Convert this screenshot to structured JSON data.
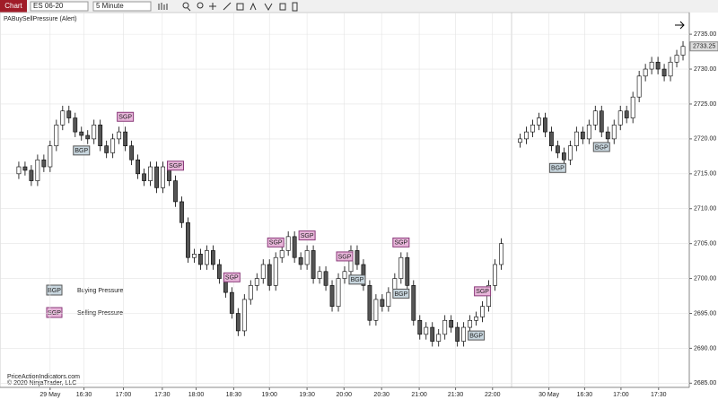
{
  "toolbar": {
    "tab": "Chart",
    "instrument": "ES 06-20",
    "interval": "5 Minute"
  },
  "indicator": "PABuySellPressure (Alert)",
  "footer": [
    "PriceActionIndicators.com",
    "© 2020 NinjaTrader, LLC"
  ],
  "legend": [
    {
      "tag": "BGP",
      "text": "Buying Pressure"
    },
    {
      "tag": "SGP",
      "text": "Selling Pressure"
    }
  ],
  "chart_data": {
    "type": "candlestick",
    "x": [
      0,
      1,
      2,
      3,
      4,
      5,
      6,
      7,
      8,
      9,
      10,
      11,
      12,
      13,
      14,
      15,
      16,
      17,
      18,
      19,
      20,
      21,
      22,
      23,
      24,
      25,
      26,
      27,
      28,
      29,
      30,
      31,
      32,
      33,
      34,
      35,
      36,
      37,
      38,
      39,
      40,
      41,
      42,
      43,
      44,
      45,
      46,
      47,
      48,
      49,
      50,
      51,
      52,
      53,
      54,
      55,
      56,
      57,
      58,
      59,
      60,
      61,
      62,
      63,
      64,
      65,
      66,
      67,
      68,
      69,
      70,
      71,
      72,
      73,
      74,
      75,
      76,
      77,
      80,
      81,
      82,
      83,
      84,
      85,
      86,
      87,
      88,
      89,
      90,
      91,
      92,
      93,
      94,
      95,
      96,
      97,
      98,
      99,
      100,
      101,
      102,
      103,
      104,
      105,
      106
    ],
    "open": [
      2715,
      2716,
      2715.5,
      2714,
      2717,
      2716,
      2719,
      2722,
      2724,
      2723,
      2721,
      2720.5,
      2720,
      2722,
      2719,
      2718,
      2720,
      2721,
      2719,
      2717,
      2715,
      2714,
      2716,
      2713,
      2716,
      2714,
      2711,
      2708,
      2703,
      2703.5,
      2702,
      2704,
      2702,
      2700,
      2698,
      2695,
      2692.5,
      2697,
      2699,
      2700,
      2702,
      2699,
      2703,
      2704,
      2706,
      2703,
      2702,
      2704,
      2700,
      2701,
      2699,
      2696,
      2700,
      2701,
      2704,
      2702,
      2699,
      2694,
      2697,
      2696,
      2698,
      2700,
      2703,
      2699,
      2694,
      2692,
      2693,
      2691,
      2692,
      2694,
      2693,
      2691,
      2693,
      2694,
      2694.5,
      2696,
      2699,
      2702,
      2719.5,
      2720,
      2721,
      2722,
      2723,
      2721,
      2719,
      2718,
      2717,
      2719,
      2721,
      2720,
      2722,
      2724,
      2721,
      2720,
      2722,
      2724,
      2723,
      2726,
      2729,
      2730,
      2731,
      2730,
      2729,
      2731,
      2732
    ],
    "high": [
      2716.75,
      2716.75,
      2716.25,
      2717.75,
      2717.75,
      2719.75,
      2722.75,
      2724.75,
      2724.75,
      2723.75,
      2721.75,
      2721.25,
      2722.75,
      2722.75,
      2719.75,
      2720.75,
      2721.75,
      2721.75,
      2719.75,
      2717.75,
      2715.75,
      2716.75,
      2716.75,
      2716.75,
      2716.75,
      2714.75,
      2711.75,
      2708.75,
      2704.25,
      2704.25,
      2704.75,
      2704.75,
      2702.75,
      2700.75,
      2698.75,
      2695.75,
      2697.75,
      2699.75,
      2700.75,
      2702.75,
      2702.75,
      2703.75,
      2704.75,
      2706.75,
      2706.75,
      2703.75,
      2704.75,
      2704.75,
      2701.75,
      2701.75,
      2699.75,
      2700.75,
      2701.75,
      2704.75,
      2704.75,
      2702.75,
      2699.75,
      2697.75,
      2697.75,
      2698.75,
      2700.75,
      2703.75,
      2703.75,
      2699.75,
      2694.75,
      2693.75,
      2693.75,
      2692.75,
      2694.75,
      2694.75,
      2693.75,
      2693.75,
      2694.75,
      2695.25,
      2696.75,
      2699.75,
      2702.75,
      2705.75,
      2720.75,
      2721.75,
      2722.75,
      2723.75,
      2723.75,
      2721.75,
      2719.75,
      2718.75,
      2719.75,
      2721.75,
      2721.75,
      2722.75,
      2724.75,
      2724.75,
      2721.75,
      2722.75,
      2724.75,
      2724.75,
      2726.75,
      2729.75,
      2730.75,
      2731.75,
      2731.75,
      2730.75,
      2731.75,
      2732.75,
      2734
    ],
    "low": [
      2714.25,
      2714.75,
      2713.25,
      2713.25,
      2715.25,
      2715.25,
      2718.25,
      2721.25,
      2722.25,
      2720.25,
      2719.75,
      2719.25,
      2719.25,
      2718.25,
      2717.25,
      2717.25,
      2719.25,
      2718.25,
      2716.25,
      2714.25,
      2713.25,
      2713.25,
      2712.25,
      2712.25,
      2713.25,
      2710.25,
      2707.25,
      2702.25,
      2702.25,
      2701.25,
      2701.25,
      2701.25,
      2699.25,
      2697.25,
      2694.25,
      2691.75,
      2691.75,
      2696.25,
      2698.25,
      2699.25,
      2698.25,
      2698.25,
      2702.25,
      2703.25,
      2702.25,
      2701.25,
      2701.25,
      2699.25,
      2699.25,
      2698.25,
      2695.25,
      2695.25,
      2699.25,
      2700.25,
      2701.25,
      2698.25,
      2693.25,
      2693.25,
      2695.25,
      2695.25,
      2697.25,
      2699.25,
      2698.25,
      2693.25,
      2691.25,
      2691.25,
      2690.25,
      2690.25,
      2691.25,
      2692.25,
      2690.25,
      2690.25,
      2692.25,
      2693.25,
      2693.75,
      2695.25,
      2698.25,
      2701.25,
      2718.75,
      2719.25,
      2720.25,
      2721.25,
      2720.25,
      2718.25,
      2717.25,
      2716.25,
      2716.25,
      2718.25,
      2719.25,
      2719.25,
      2721.25,
      2720.25,
      2719.25,
      2719.25,
      2721.25,
      2722.25,
      2722.25,
      2725.25,
      2728.25,
      2729.25,
      2729.25,
      2728.25,
      2728.25,
      2730.25,
      2731.25
    ],
    "close": [
      2716,
      2715.5,
      2714,
      2717,
      2716,
      2719,
      2722,
      2724,
      2723,
      2721,
      2720.5,
      2720,
      2722,
      2719,
      2718,
      2720,
      2721,
      2719,
      2717,
      2715,
      2714,
      2716,
      2713,
      2716,
      2714,
      2711,
      2708,
      2703,
      2703.5,
      2702,
      2704,
      2702,
      2700,
      2698,
      2695,
      2692.5,
      2697,
      2699,
      2700,
      2702,
      2699,
      2703,
      2704,
      2706,
      2703,
      2702,
      2704,
      2700,
      2701,
      2699,
      2696,
      2700,
      2701,
      2704,
      2702,
      2699,
      2694,
      2697,
      2696,
      2698,
      2700,
      2703,
      2699,
      2694,
      2692,
      2693,
      2691,
      2692,
      2694,
      2693,
      2691,
      2693,
      2694,
      2694.5,
      2696,
      2699,
      2702,
      2705,
      2720,
      2721,
      2722,
      2723,
      2721,
      2719,
      2718,
      2717,
      2719,
      2721,
      2720,
      2722,
      2724,
      2721,
      2720,
      2722,
      2724,
      2723,
      2726,
      2729,
      2730,
      2731,
      2730,
      2729,
      2731,
      2732,
      2733.25
    ],
    "last_price": 2733.25,
    "signals": [
      {
        "label": "BGP",
        "x": 10
      },
      {
        "label": "SGP",
        "x": 17
      },
      {
        "label": "SGP",
        "x": 25
      },
      {
        "label": "SGP",
        "x": 34
      },
      {
        "label": "SGP",
        "x": 41
      },
      {
        "label": "SGP",
        "x": 46
      },
      {
        "label": "SGP",
        "x": 52
      },
      {
        "label": "BGP",
        "x": 54
      },
      {
        "label": "SGP",
        "x": 61
      },
      {
        "label": "BGP",
        "x": 61
      },
      {
        "label": "BGP",
        "x": 73
      },
      {
        "label": "SGP",
        "x": 74
      },
      {
        "label": "BGP",
        "x": 86
      },
      {
        "label": "BGP",
        "x": 93
      }
    ],
    "xlim": [
      -3,
      107
    ],
    "ylim": [
      2684.4,
      2738.1
    ],
    "xticks": [
      {
        "value": 5,
        "label": "29 May"
      },
      {
        "value": 10.4,
        "label": "16:30"
      },
      {
        "value": 16.7,
        "label": "17:00"
      },
      {
        "value": 22.9,
        "label": "17:30"
      },
      {
        "value": 28.3,
        "label": "18:00"
      },
      {
        "value": 34.3,
        "label": "18:30"
      },
      {
        "value": 40,
        "label": "19:00"
      },
      {
        "value": 46,
        "label": "19:30"
      },
      {
        "value": 51.9,
        "label": "20:00"
      },
      {
        "value": 57.9,
        "label": "20:30"
      },
      {
        "value": 63.9,
        "label": "21:00"
      },
      {
        "value": 69.7,
        "label": "21:30"
      },
      {
        "value": 75.6,
        "label": "22:00"
      },
      {
        "value": 84.6,
        "label": "30 May"
      },
      {
        "value": 90.3,
        "label": "16:30"
      },
      {
        "value": 96.1,
        "label": "17:00"
      },
      {
        "value": 102.1,
        "label": "17:30"
      }
    ],
    "yticks": [
      {
        "value": 2685,
        "label": "2685.00"
      },
      {
        "value": 2690,
        "label": "2690.00"
      },
      {
        "value": 2695,
        "label": "2695.00"
      },
      {
        "value": 2700,
        "label": "2700.00"
      },
      {
        "value": 2705,
        "label": "2705.00"
      },
      {
        "value": 2710,
        "label": "2710.00"
      },
      {
        "value": 2715,
        "label": "2715.00"
      },
      {
        "value": 2720,
        "label": "2720.00"
      },
      {
        "value": 2725,
        "label": "2725.00"
      },
      {
        "value": 2730,
        "label": "2730.00"
      },
      {
        "value": 2735,
        "label": "2735.00"
      }
    ],
    "up_color": "#ffffff",
    "down_color": "#555555",
    "grid": true
  }
}
